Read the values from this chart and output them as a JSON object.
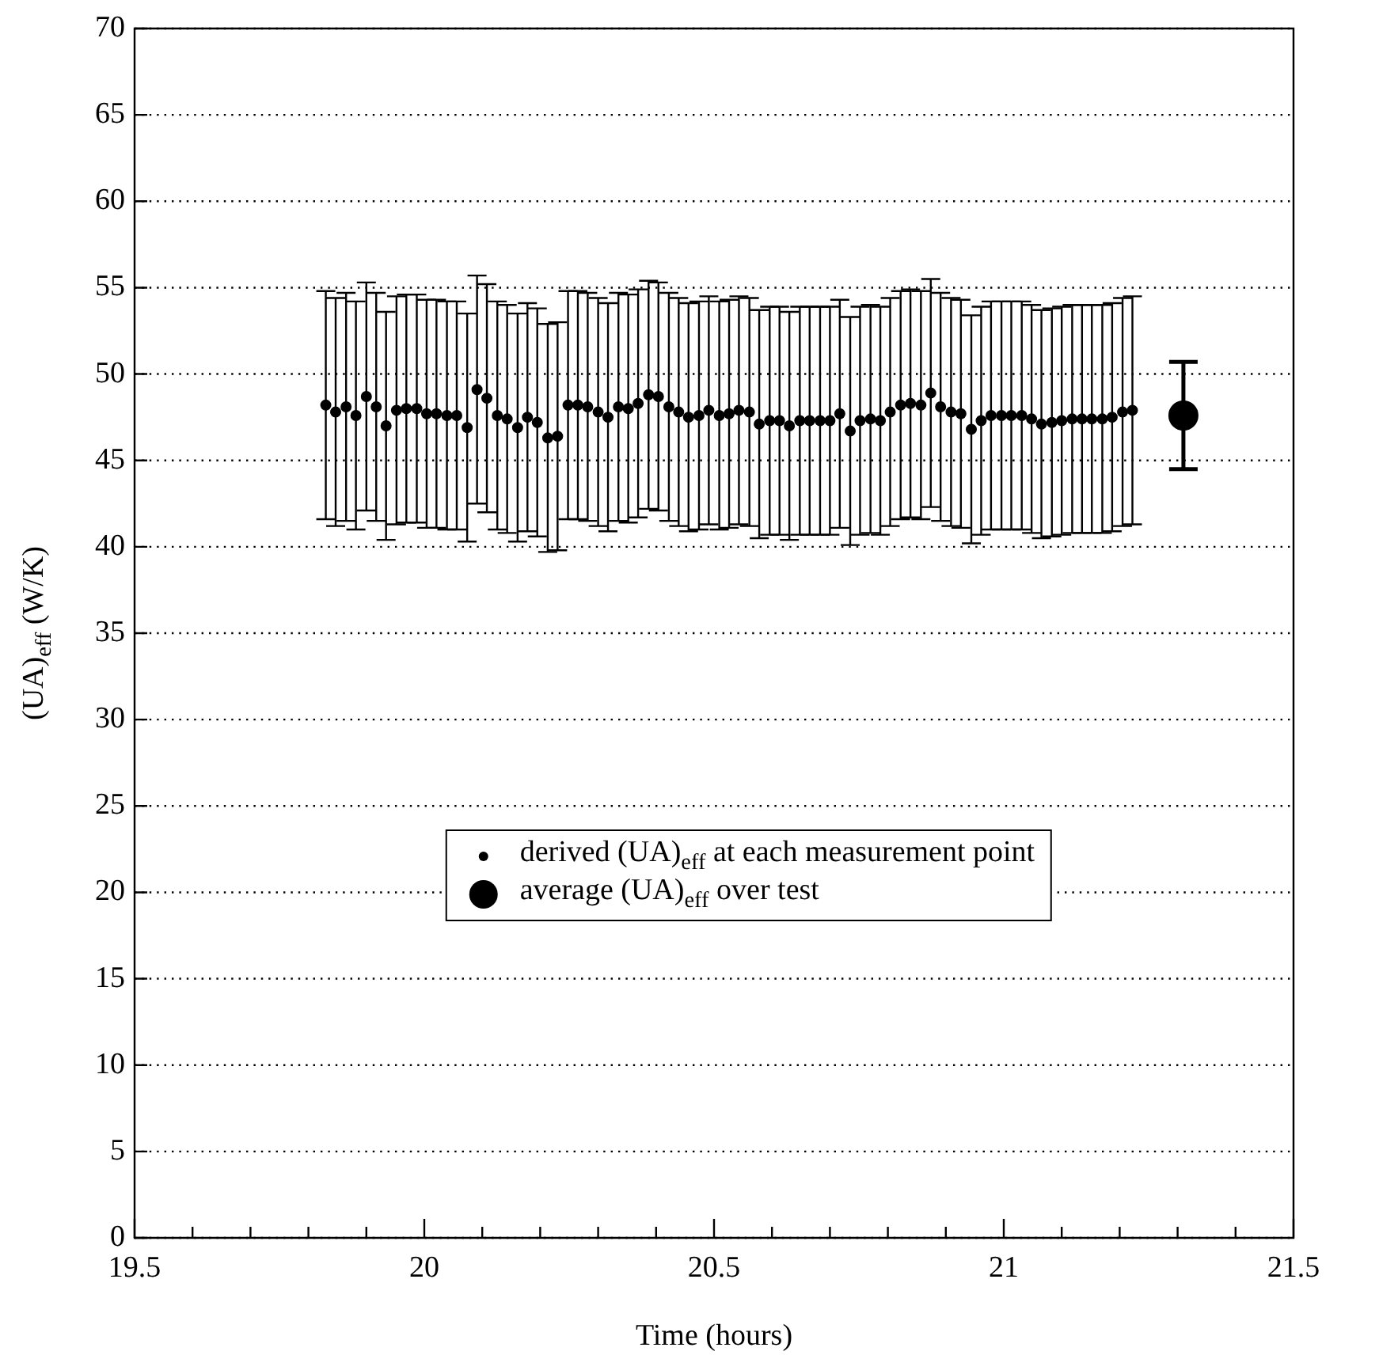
{
  "chart_data": {
    "type": "scatter",
    "xlabel": "Time (hours)",
    "ylabel": "(UA)$_{eff}$ (W/K)",
    "xlim": [
      19.5,
      21.5
    ],
    "xticks": [
      19.5,
      {
        "value": 19.6,
        "label": null
      },
      {
        "value": 19.7,
        "label": null
      },
      {
        "value": 19.8,
        "label": null
      },
      {
        "value": 19.9,
        "label": null
      },
      20,
      {
        "value": 20.1,
        "label": null
      },
      {
        "value": 20.2,
        "label": null
      },
      {
        "value": 20.3,
        "label": null
      },
      {
        "value": 20.4,
        "label": null
      },
      20.5,
      {
        "value": 20.6,
        "label": null
      },
      {
        "value": 20.7,
        "label": null
      },
      {
        "value": 20.8,
        "label": null
      },
      {
        "value": 20.9,
        "label": null
      },
      21,
      {
        "value": 21.1,
        "label": null
      },
      {
        "value": 21.2,
        "label": null
      },
      {
        "value": 21.3,
        "label": null
      },
      {
        "value": 21.4,
        "label": null
      },
      21.5
    ],
    "ylim": [
      0,
      70
    ],
    "yticks": [
      0,
      5,
      10,
      15,
      20,
      25,
      30,
      35,
      40,
      45,
      50,
      55,
      60,
      65,
      70
    ],
    "grid": "y",
    "legend": "center",
    "marker": "circle",
    "series": [
      {
        "name": "derived (UA)$_{eff}$ at each measurement point",
        "color": "#000000",
        "x": [
          19.83,
          19.847,
          19.865,
          19.882,
          19.9,
          19.917,
          19.934,
          19.952,
          19.969,
          19.987,
          20.004,
          20.021,
          20.039,
          20.056,
          20.074,
          20.091,
          20.108,
          20.126,
          20.143,
          20.161,
          20.178,
          20.195,
          20.213,
          20.23,
          20.248,
          20.265,
          20.282,
          20.3,
          20.317,
          20.335,
          20.352,
          20.369,
          20.387,
          20.404,
          20.422,
          20.439,
          20.456,
          20.474,
          20.491,
          20.509,
          20.526,
          20.543,
          20.561,
          20.578,
          20.596,
          20.613,
          20.63,
          20.648,
          20.665,
          20.683,
          20.7,
          20.717,
          20.735,
          20.752,
          20.77,
          20.787,
          20.804,
          20.822,
          20.839,
          20.857,
          20.874,
          20.891,
          20.909,
          20.926,
          20.944,
          20.961,
          20.978,
          20.996,
          21.013,
          21.031,
          21.048,
          21.065,
          21.083,
          21.1,
          21.118,
          21.135,
          21.152,
          21.17,
          21.187,
          21.205,
          21.222
        ],
        "values": [
          48.2,
          47.8,
          48.1,
          47.6,
          48.7,
          48.1,
          47.0,
          47.9,
          48.0,
          48.0,
          47.7,
          47.7,
          47.6,
          47.6,
          46.9,
          49.1,
          48.6,
          47.6,
          47.4,
          46.9,
          47.5,
          47.2,
          46.3,
          46.4,
          48.2,
          48.2,
          48.1,
          47.8,
          47.5,
          48.1,
          48.0,
          48.3,
          48.8,
          48.7,
          48.1,
          47.8,
          47.5,
          47.6,
          47.9,
          47.6,
          47.7,
          47.9,
          47.8,
          47.1,
          47.3,
          47.3,
          47.0,
          47.3,
          47.3,
          47.3,
          47.3,
          47.7,
          46.7,
          47.3,
          47.4,
          47.3,
          47.8,
          48.2,
          48.3,
          48.2,
          48.9,
          48.1,
          47.8,
          47.7,
          46.8,
          47.3,
          47.6,
          47.6,
          47.6,
          47.6,
          47.4,
          47.1,
          47.2,
          47.3,
          47.4,
          47.4,
          47.4,
          47.4,
          47.5,
          47.8,
          47.9
        ],
        "errors": [
          6.6,
          6.6,
          6.6,
          6.6,
          6.6,
          6.6,
          6.6,
          6.6,
          6.6,
          6.6,
          6.6,
          6.6,
          6.6,
          6.6,
          6.6,
          6.6,
          6.6,
          6.6,
          6.6,
          6.6,
          6.6,
          6.6,
          6.6,
          6.6,
          6.6,
          6.6,
          6.6,
          6.6,
          6.6,
          6.6,
          6.6,
          6.6,
          6.6,
          6.6,
          6.6,
          6.6,
          6.6,
          6.6,
          6.6,
          6.6,
          6.6,
          6.6,
          6.6,
          6.6,
          6.6,
          6.6,
          6.6,
          6.6,
          6.6,
          6.6,
          6.6,
          6.6,
          6.6,
          6.6,
          6.6,
          6.6,
          6.6,
          6.6,
          6.6,
          6.6,
          6.6,
          6.6,
          6.6,
          6.6,
          6.6,
          6.6,
          6.6,
          6.6,
          6.6,
          6.6,
          6.6,
          6.6,
          6.6,
          6.6,
          6.6,
          6.6,
          6.6,
          6.6,
          6.6,
          6.6,
          6.6
        ]
      },
      {
        "name": "average (UA)$_{eff}$ over test",
        "color": "#000000",
        "x": [
          21.31
        ],
        "values": [
          47.6
        ],
        "errors": [
          3.1
        ]
      }
    ]
  }
}
